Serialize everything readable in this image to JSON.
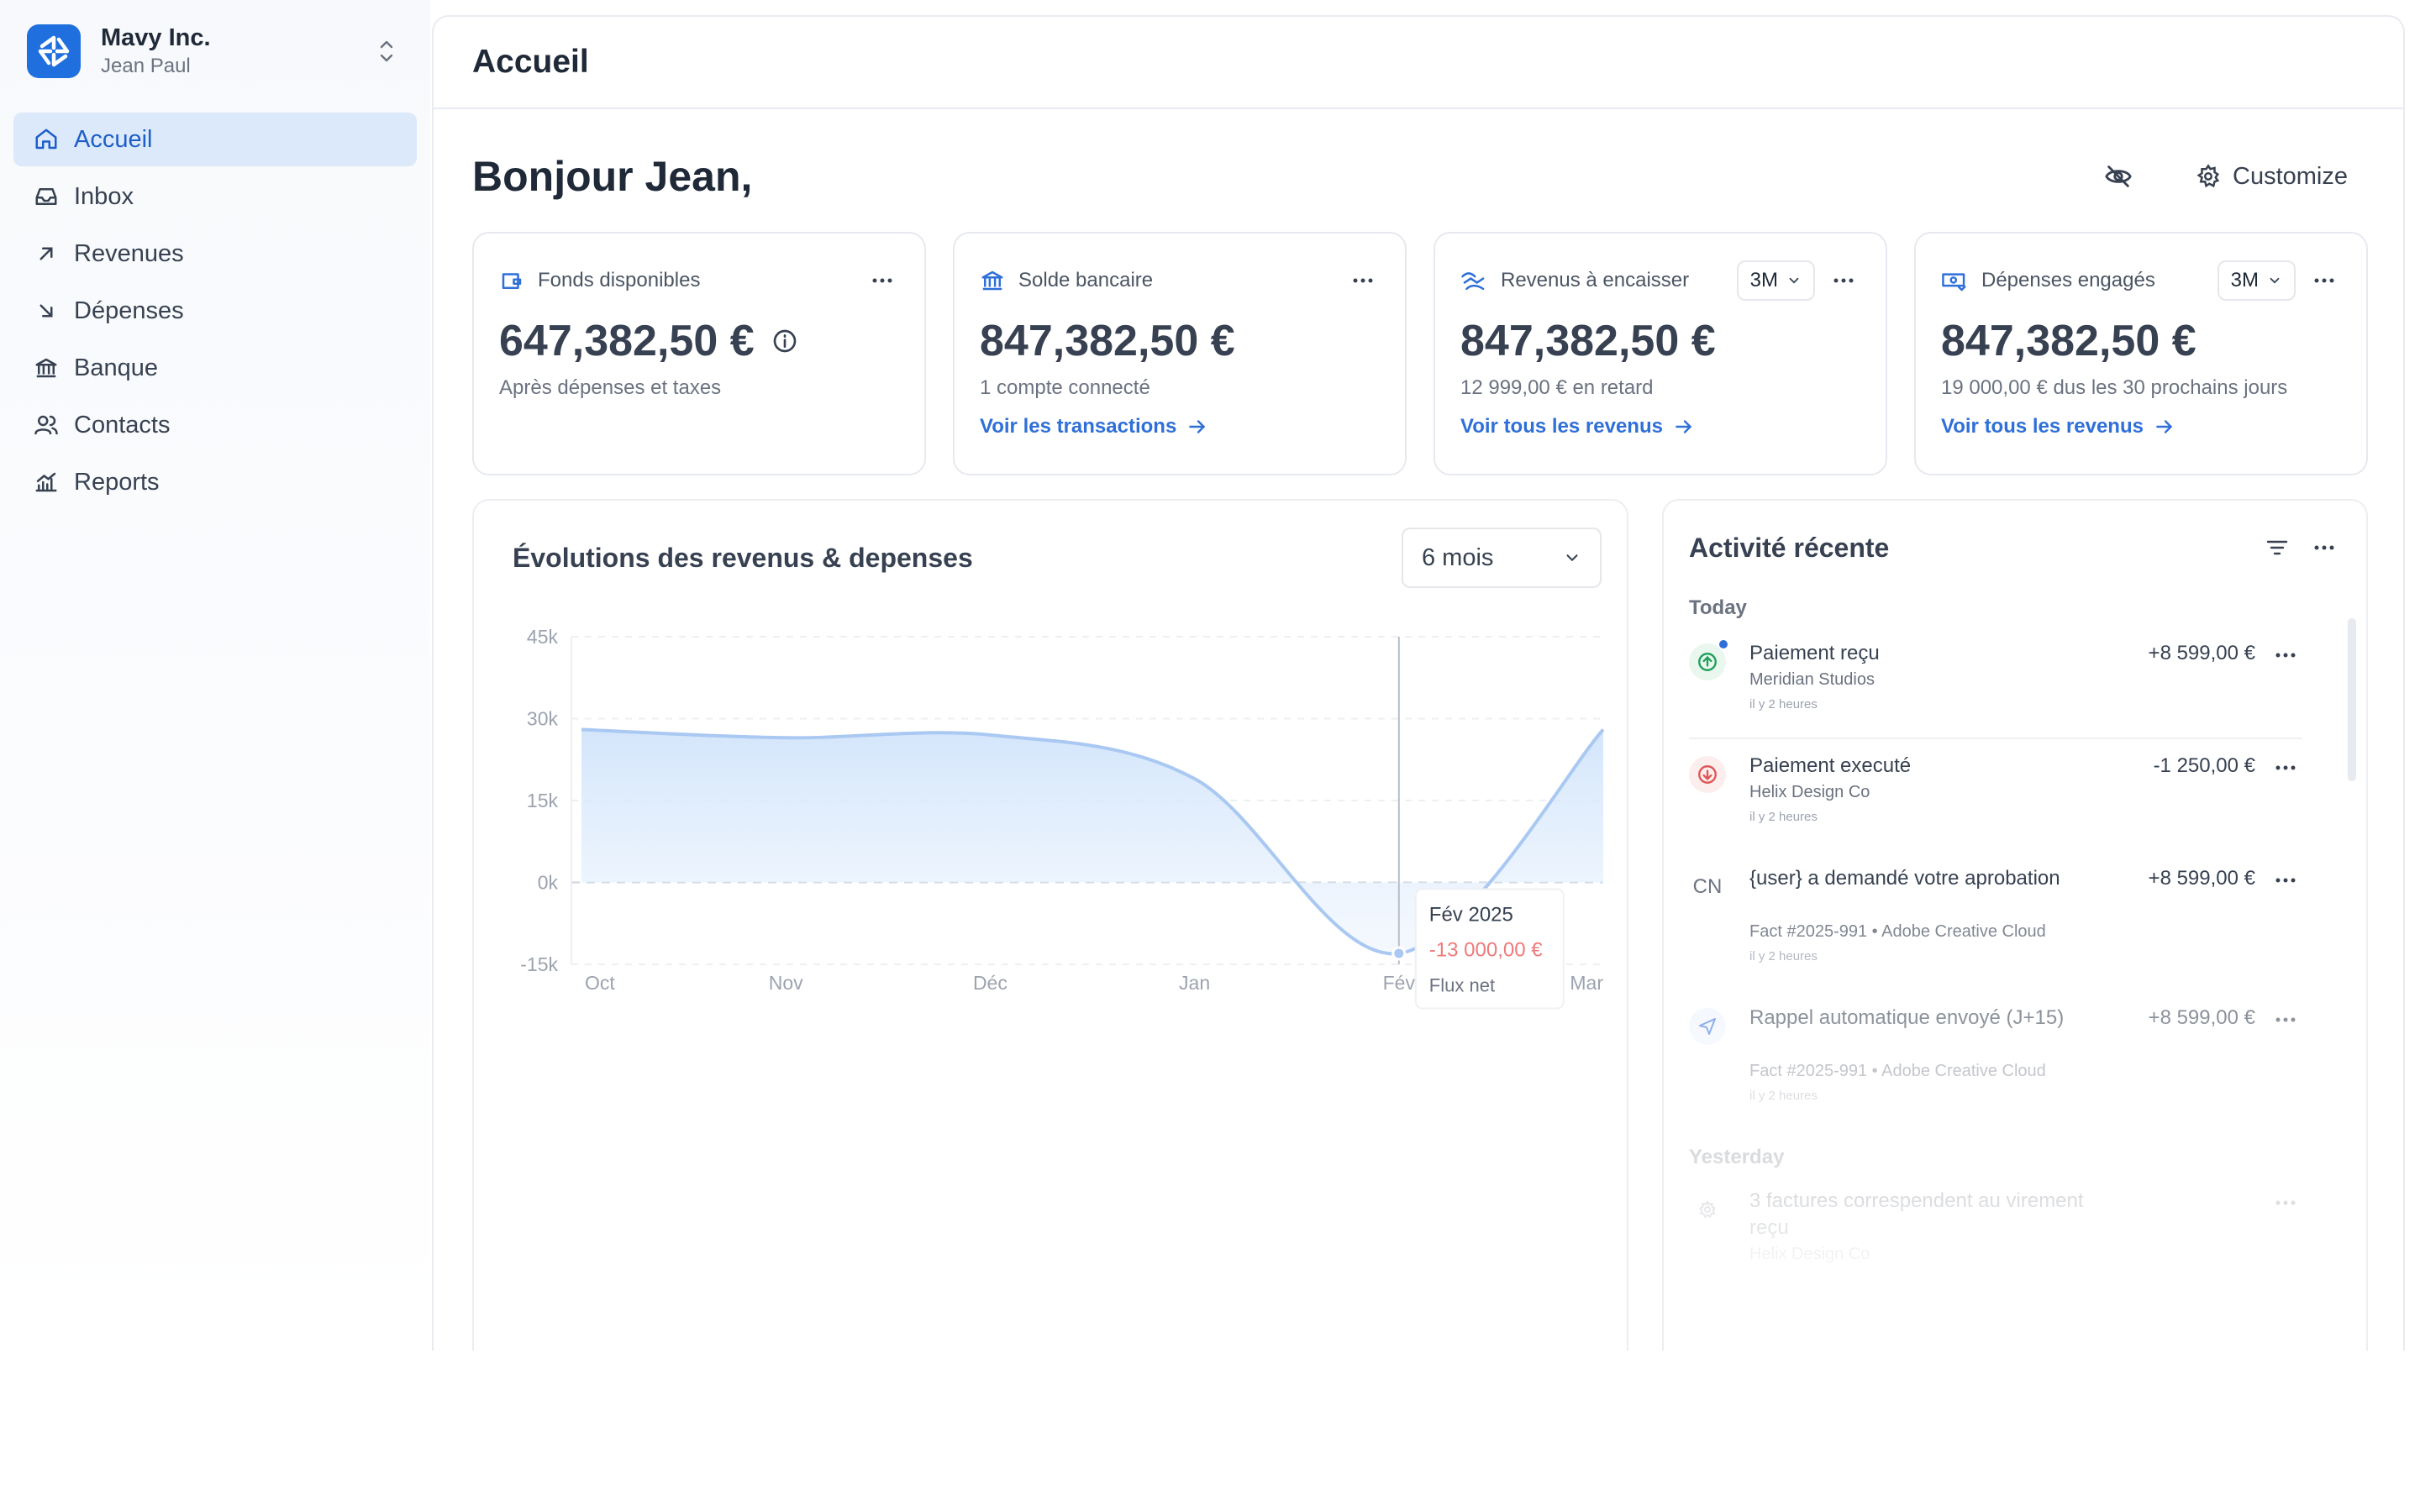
{
  "org": {
    "name": "Mavy Inc.",
    "user": "Jean Paul"
  },
  "nav": [
    {
      "label": "Accueil",
      "icon": "home-icon"
    },
    {
      "label": "Inbox",
      "icon": "inbox-icon"
    },
    {
      "label": "Revenues",
      "icon": "arrow-up-right-icon"
    },
    {
      "label": "Dépenses",
      "icon": "arrow-down-right-icon"
    },
    {
      "label": "Banque",
      "icon": "bank-icon"
    },
    {
      "label": "Contacts",
      "icon": "users-icon"
    },
    {
      "label": "Reports",
      "icon": "chart-icon"
    }
  ],
  "header": {
    "title": "Accueil"
  },
  "greeting": "Bonjour Jean,",
  "customize_label": "Customize",
  "kpis": [
    {
      "label": "Fonds disponibles",
      "value": "647,382,50 €",
      "sub": "Après dépenses et taxes",
      "link": ""
    },
    {
      "label": "Solde bancaire",
      "value": "847,382,50 €",
      "sub": "1 compte connecté",
      "link": "Voir les transactions"
    },
    {
      "label": "Revenus à encaisser",
      "period": "3M",
      "value": "847,382,50 €",
      "sub": "12 999,00 € en retard",
      "link": "Voir tous les revenus"
    },
    {
      "label": "Dépenses engagés",
      "period": "3M",
      "value": "847,382,50 €",
      "sub": "19 000,00 € dus les 30 prochains jours",
      "link": "Voir tous les revenus"
    }
  ],
  "chart": {
    "title": "Évolutions des revenus & depenses",
    "range": "6 mois",
    "tooltip": {
      "title": "Fév 2025",
      "value": "-13 000,00 €",
      "label": "Flux net"
    }
  },
  "chart_data": {
    "type": "area",
    "categories": [
      "Oct",
      "Nov",
      "Déc",
      "Jan",
      "Fév",
      "Mar"
    ],
    "values": [
      28000,
      26500,
      27000,
      19000,
      -13000,
      28000
    ],
    "ylim": [
      -15000,
      45000
    ],
    "yticks": [
      "45k",
      "30k",
      "15k",
      "0k",
      "-15k"
    ],
    "colors": {
      "line": "#a9c8f2",
      "fill": "#dbeafc"
    }
  },
  "activity": {
    "title": "Activité récente",
    "today_label": "Today",
    "yesterday_label": "Yesterday",
    "items": [
      {
        "title": "Paiement reçu",
        "meta": "Meridian Studios",
        "time": "il y 2 heures",
        "amount": "+8 599,00 €",
        "icon": "arrow-up-circle-icon"
      },
      {
        "title": "Paiement executé",
        "meta": "Helix Design Co",
        "time": "il y 2 heures",
        "amount": "-1 250,00 €",
        "icon": "arrow-down-circle-icon"
      },
      {
        "title": "{user} a demandé votre aprobation",
        "meta": "Fact #2025-991 • Adobe Creative Cloud",
        "time": "il y 2 heures",
        "amount": "+8 599,00 €",
        "icon": "CN"
      },
      {
        "title": "Rappel automatique envoyé (J+15)",
        "meta": "Fact #2025-991 • Adobe Creative Cloud",
        "time": "il y 2 heures",
        "amount": "+8 599,00 €",
        "icon": "send-icon"
      },
      {
        "title": "3 factures correspendent au virement reçu",
        "meta": "Helix Design Co",
        "time": "",
        "amount": "",
        "icon": "gear-icon"
      }
    ]
  }
}
